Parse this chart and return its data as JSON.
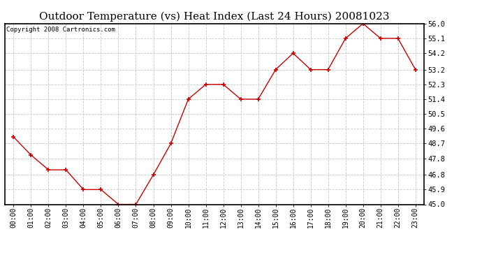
{
  "title": "Outdoor Temperature (vs) Heat Index (Last 24 Hours) 20081023",
  "copyright": "Copyright 2008 Cartronics.com",
  "x_labels": [
    "00:00",
    "01:00",
    "02:00",
    "03:00",
    "04:00",
    "05:00",
    "06:00",
    "07:00",
    "08:00",
    "09:00",
    "10:00",
    "11:00",
    "12:00",
    "13:00",
    "14:00",
    "15:00",
    "16:00",
    "17:00",
    "18:00",
    "19:00",
    "20:00",
    "21:00",
    "22:00",
    "23:00"
  ],
  "y_values": [
    49.1,
    48.0,
    47.1,
    47.1,
    45.9,
    45.9,
    45.0,
    45.0,
    46.8,
    48.7,
    51.4,
    52.3,
    52.3,
    51.4,
    51.4,
    53.2,
    54.2,
    53.2,
    53.2,
    55.1,
    56.0,
    55.1,
    55.1,
    53.2
  ],
  "y_min": 45.0,
  "y_max": 56.0,
  "y_ticks": [
    45.0,
    45.9,
    46.8,
    47.8,
    48.7,
    49.6,
    50.5,
    51.4,
    52.3,
    53.2,
    54.2,
    55.1,
    56.0
  ],
  "line_color": "#cc0000",
  "marker": "+",
  "marker_size": 5,
  "marker_linewidth": 1.2,
  "grid_color": "#c8c8c8",
  "background_color": "#ffffff",
  "title_fontsize": 11,
  "copyright_fontsize": 6.5,
  "tick_fontsize": 7.5,
  "x_tick_fontsize": 7
}
